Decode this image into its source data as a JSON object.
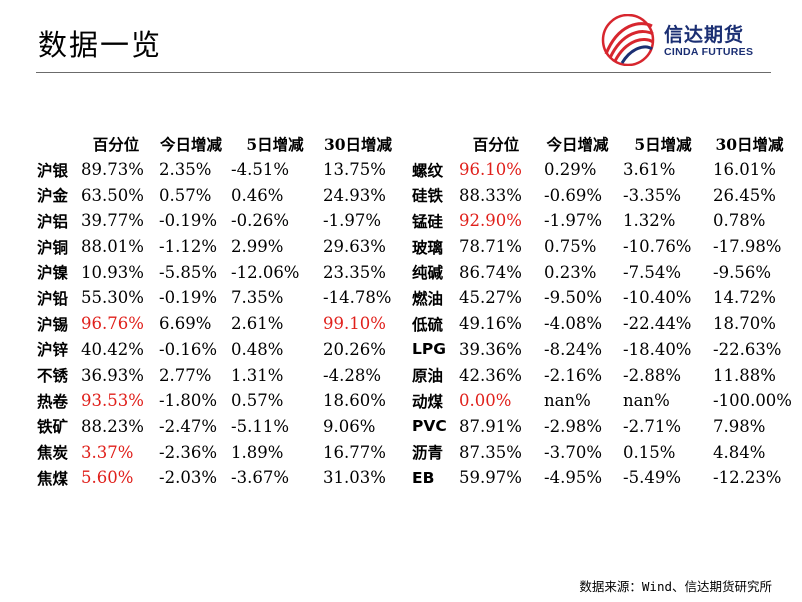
{
  "title": "数据一览",
  "logo": {
    "name_cn": "信达期货",
    "name_en": "CINDA FUTURES",
    "colors": {
      "red": "#d7262e",
      "navy": "#1b2f73"
    }
  },
  "headers": [
    "",
    "百分位",
    "今日增减",
    "5日增减",
    "30日增减"
  ],
  "highlight_color": "#e0201b",
  "left_table": [
    {
      "name": "沪银",
      "pct": "89.73%",
      "d1": "2.35%",
      "d5": "-4.51%",
      "d30": "13.75%",
      "red": []
    },
    {
      "name": "沪金",
      "pct": "63.50%",
      "d1": "0.57%",
      "d5": "0.46%",
      "d30": "24.93%",
      "red": []
    },
    {
      "name": "沪铝",
      "pct": "39.77%",
      "d1": "-0.19%",
      "d5": "-0.26%",
      "d30": "-1.97%",
      "red": []
    },
    {
      "name": "沪铜",
      "pct": "88.01%",
      "d1": "-1.12%",
      "d5": "2.99%",
      "d30": "29.63%",
      "red": []
    },
    {
      "name": "沪镍",
      "pct": "10.93%",
      "d1": "-5.85%",
      "d5": "-12.06%",
      "d30": "23.35%",
      "red": []
    },
    {
      "name": "沪铅",
      "pct": "55.30%",
      "d1": "-0.19%",
      "d5": "7.35%",
      "d30": "-14.78%",
      "red": []
    },
    {
      "name": "沪锡",
      "pct": "96.76%",
      "d1": "6.69%",
      "d5": "2.61%",
      "d30": "99.10%",
      "red": [
        "pct",
        "d30"
      ]
    },
    {
      "name": "沪锌",
      "pct": "40.42%",
      "d1": "-0.16%",
      "d5": "0.48%",
      "d30": "20.26%",
      "red": []
    },
    {
      "name": "不锈",
      "pct": "36.93%",
      "d1": "2.77%",
      "d5": "1.31%",
      "d30": "-4.28%",
      "red": []
    },
    {
      "name": "热卷",
      "pct": "93.53%",
      "d1": "-1.80%",
      "d5": "0.57%",
      "d30": "18.60%",
      "red": [
        "pct"
      ]
    },
    {
      "name": "铁矿",
      "pct": "88.23%",
      "d1": "-2.47%",
      "d5": "-5.11%",
      "d30": "9.06%",
      "red": []
    },
    {
      "name": "焦炭",
      "pct": "3.37%",
      "d1": "-2.36%",
      "d5": "1.89%",
      "d30": "16.77%",
      "red": [
        "pct"
      ]
    },
    {
      "name": "焦煤",
      "pct": "5.60%",
      "d1": "-2.03%",
      "d5": "-3.67%",
      "d30": "31.03%",
      "red": [
        "pct"
      ]
    }
  ],
  "right_table": [
    {
      "name": "螺纹",
      "pct": "96.10%",
      "d1": "0.29%",
      "d5": "3.61%",
      "d30": "16.01%",
      "red": [
        "pct"
      ]
    },
    {
      "name": "硅铁",
      "pct": "88.33%",
      "d1": "-0.69%",
      "d5": "-3.35%",
      "d30": "26.45%",
      "red": []
    },
    {
      "name": "锰硅",
      "pct": "92.90%",
      "d1": "-1.97%",
      "d5": "1.32%",
      "d30": "0.78%",
      "red": [
        "pct"
      ]
    },
    {
      "name": "玻璃",
      "pct": "78.71%",
      "d1": "0.75%",
      "d5": "-10.76%",
      "d30": "-17.98%",
      "red": []
    },
    {
      "name": "纯碱",
      "pct": "86.74%",
      "d1": "0.23%",
      "d5": "-7.54%",
      "d30": "-9.56%",
      "red": []
    },
    {
      "name": "燃油",
      "pct": "45.27%",
      "d1": "-9.50%",
      "d5": "-10.40%",
      "d30": "14.72%",
      "red": []
    },
    {
      "name": "低硫",
      "pct": "49.16%",
      "d1": "-4.08%",
      "d5": "-22.44%",
      "d30": "18.70%",
      "red": []
    },
    {
      "name": "LPG",
      "pct": "39.36%",
      "d1": "-8.24%",
      "d5": "-18.40%",
      "d30": "-22.63%",
      "red": []
    },
    {
      "name": "原油",
      "pct": "42.36%",
      "d1": "-2.16%",
      "d5": "-2.88%",
      "d30": "11.88%",
      "red": []
    },
    {
      "name": "动煤",
      "pct": "0.00%",
      "d1": "nan%",
      "d5": "nan%",
      "d30": "-100.00%",
      "red": [
        "pct"
      ]
    },
    {
      "name": "PVC",
      "pct": "87.91%",
      "d1": "-2.98%",
      "d5": "-2.71%",
      "d30": "7.98%",
      "red": []
    },
    {
      "name": "沥青",
      "pct": "87.35%",
      "d1": "-3.70%",
      "d5": "0.15%",
      "d30": "4.84%",
      "red": []
    },
    {
      "name": "EB",
      "pct": "59.97%",
      "d1": "-4.95%",
      "d5": "-5.49%",
      "d30": "-12.23%",
      "red": []
    }
  ],
  "source": "数据来源：Wind、信达期货研究所"
}
